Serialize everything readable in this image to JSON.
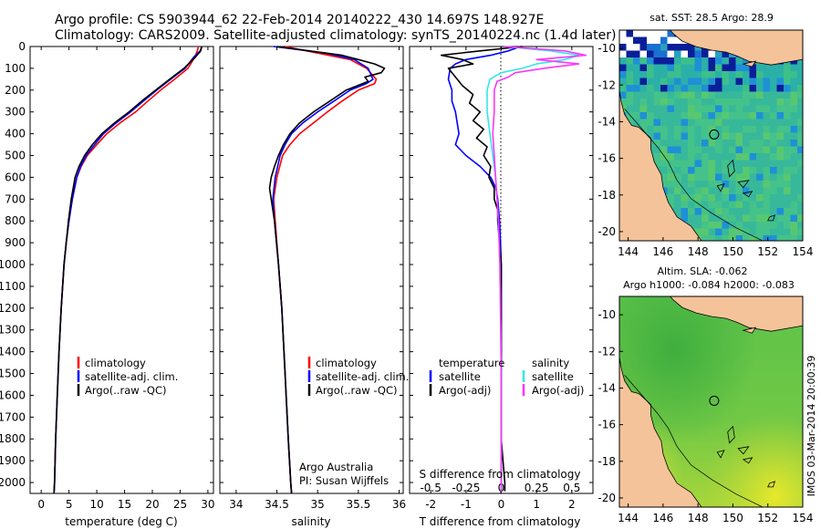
{
  "header": {
    "line1": "Argo profile: CS 5903944_62 22-Feb-2014 20140222_430 14.697S 148.927E",
    "line2": "Climatology: CARS2009. Satellite-adjusted climatology: synTS_20140224.nc (1.4d later)"
  },
  "colors": {
    "climatology": "#ff0000",
    "satellite": "#0000ff",
    "argo": "#000000",
    "sal_satellite": "#33e6e6",
    "sal_argo": "#ff33ff",
    "land": "#f5c39a"
  },
  "chart_data": [
    {
      "type": "line",
      "title": "",
      "xlabel": "temperature (deg C)",
      "ylabel": "",
      "xlim": [
        -2,
        31
      ],
      "ylim": [
        2050,
        0
      ],
      "xticks": [
        "0",
        "5",
        "10",
        "15",
        "20",
        "25",
        "30"
      ],
      "yticks": [
        "0",
        "100",
        "200",
        "300",
        "400",
        "500",
        "600",
        "700",
        "800",
        "900",
        "1000",
        "1100",
        "1200",
        "1300",
        "1400",
        "1500",
        "1600",
        "1700",
        "1800",
        "1900",
        "2000"
      ],
      "legend": [
        "climatology",
        "satellite-adj. clim.",
        "Argo(..raw -QC)"
      ],
      "series": [
        {
          "name": "climatology",
          "depth": [
            0,
            20,
            50,
            100,
            150,
            200,
            250,
            300,
            350,
            400,
            450,
            500,
            550,
            600,
            700,
            800,
            900,
            1000,
            1200,
            1400,
            1600,
            1800,
            2000,
            2050
          ],
          "values": [
            28.3,
            28.1,
            27.6,
            26.4,
            24.0,
            21.5,
            19.2,
            17.0,
            14.2,
            11.8,
            10.0,
            8.3,
            7.2,
            6.4,
            5.6,
            5.0,
            4.5,
            4.1,
            3.6,
            3.2,
            2.9,
            2.6,
            2.4,
            2.3
          ]
        },
        {
          "name": "satellite-adj. clim.",
          "depth": [
            0,
            20,
            50,
            100,
            150,
            200,
            250,
            300,
            350,
            400,
            450,
            500,
            550,
            600,
            700,
            800,
            900,
            1000,
            1200,
            1400,
            1600,
            1800,
            2000,
            2050
          ],
          "values": [
            28.9,
            28.6,
            27.4,
            25.9,
            23.3,
            20.8,
            18.4,
            16.1,
            13.5,
            11.2,
            9.6,
            8.1,
            7.1,
            6.4,
            5.6,
            5.0,
            4.5,
            4.1,
            3.6,
            3.2,
            2.9,
            2.6,
            2.4,
            2.3
          ]
        },
        {
          "name": "Argo(..raw -QC)",
          "depth": [
            0,
            20,
            50,
            100,
            150,
            200,
            250,
            300,
            350,
            400,
            450,
            500,
            550,
            600,
            700,
            800,
            900,
            1000,
            1200,
            1400,
            1600,
            1800,
            2000,
            2050
          ],
          "values": [
            28.9,
            28.7,
            27.7,
            25.7,
            23.1,
            20.6,
            18.1,
            15.8,
            13.2,
            10.9,
            9.2,
            7.8,
            6.8,
            6.1,
            5.4,
            4.9,
            4.5,
            4.1,
            3.6,
            3.2,
            2.9,
            2.6,
            2.4,
            2.3
          ]
        }
      ]
    },
    {
      "type": "line",
      "xlabel": "salinity",
      "xlim": [
        33.8,
        36.05
      ],
      "ylim": [
        2050,
        0
      ],
      "xticks": [
        "34",
        "34.5",
        "35",
        "35.5",
        "36"
      ],
      "legend": [
        "climatology",
        "satellite-adj. clim.",
        "Argo(..raw -QC)"
      ],
      "annotation": [
        "Argo Australia",
        "PI: Susan Wijffels"
      ],
      "series": [
        {
          "name": "climatology",
          "depth": [
            0,
            30,
            60,
            100,
            150,
            170,
            200,
            250,
            300,
            350,
            400,
            450,
            500,
            600,
            700,
            800,
            1000,
            1200,
            1500,
            1800,
            2000,
            2050
          ],
          "values": [
            34.6,
            35.0,
            35.4,
            35.6,
            35.72,
            35.7,
            35.5,
            35.3,
            35.12,
            34.95,
            34.78,
            34.66,
            34.57,
            34.5,
            34.46,
            34.48,
            34.52,
            34.56,
            34.6,
            34.64,
            34.67,
            34.68
          ]
        },
        {
          "name": "satellite-adj. clim.",
          "depth": [
            0,
            30,
            60,
            100,
            150,
            170,
            200,
            250,
            300,
            350,
            400,
            450,
            500,
            600,
            700,
            800,
            1000,
            1200,
            1500,
            1800,
            2000,
            2050
          ],
          "values": [
            34.46,
            35.1,
            35.45,
            35.62,
            35.68,
            35.6,
            35.4,
            35.2,
            35.0,
            34.82,
            34.68,
            34.6,
            34.54,
            34.48,
            34.45,
            34.47,
            34.52,
            34.56,
            34.6,
            34.64,
            34.67,
            34.68
          ]
        },
        {
          "name": "Argo(..raw -QC)",
          "depth": [
            0,
            20,
            40,
            60,
            80,
            100,
            120,
            140,
            160,
            200,
            250,
            300,
            350,
            400,
            450,
            500,
            550,
            600,
            650,
            700,
            750,
            800,
            1000,
            1200,
            1500,
            1800,
            2000,
            2050
          ],
          "values": [
            34.5,
            34.9,
            35.3,
            35.5,
            35.7,
            35.82,
            35.78,
            35.58,
            35.62,
            35.35,
            35.15,
            34.95,
            34.78,
            34.66,
            34.58,
            34.52,
            34.47,
            34.43,
            34.41,
            34.43,
            34.45,
            34.47,
            34.52,
            34.56,
            34.6,
            34.64,
            34.67,
            34.68
          ]
        }
      ]
    },
    {
      "type": "line",
      "xlabel": "T difference from climatology",
      "xlabel_top": "S difference from climatology",
      "xlim": [
        -2.6,
        2.6
      ],
      "ylim": [
        2050,
        0
      ],
      "xticks": [
        "-2",
        "-1",
        "0",
        "1",
        "2"
      ],
      "xticks_sal": [
        "-0.5",
        "-0.25",
        "0",
        "0.25",
        "0.5"
      ],
      "legend_temperature": {
        "title": "temperature",
        "items": [
          "satellite",
          "Argo(-adj)"
        ]
      },
      "legend_salinity": {
        "title": "salinity",
        "items": [
          "satellite",
          "Argo(-adj)"
        ]
      },
      "series": [
        {
          "name": "temperature satellite",
          "depth": [
            0,
            20,
            40,
            60,
            80,
            100,
            150,
            200,
            250,
            300,
            350,
            400,
            450,
            500,
            550,
            600,
            650,
            700,
            800,
            900,
            1000,
            1200,
            1500,
            1800,
            2000,
            2040
          ],
          "values": [
            0.55,
            0.2,
            -0.3,
            -1.0,
            -1.3,
            -1.45,
            -1.5,
            -1.4,
            -1.4,
            -1.3,
            -1.25,
            -1.2,
            -1.3,
            -1.0,
            -0.6,
            -0.3,
            -0.15,
            -0.1,
            -0.05,
            -0.02,
            0,
            0,
            0,
            0,
            0,
            0
          ]
        },
        {
          "name": "temperature Argo(-adj)",
          "depth": [
            0,
            20,
            40,
            60,
            80,
            100,
            140,
            180,
            220,
            260,
            300,
            340,
            380,
            420,
            460,
            500,
            550,
            600,
            650,
            700,
            750,
            800,
            900,
            1000,
            1200,
            1500,
            1800,
            1900,
            2000,
            2040
          ],
          "values": [
            0.6,
            -0.6,
            -1.7,
            -1.1,
            -0.8,
            -1.5,
            -1.3,
            -1.1,
            -0.8,
            -0.9,
            -0.6,
            -0.8,
            -0.5,
            -0.7,
            -0.4,
            -0.5,
            -0.3,
            -0.35,
            -0.2,
            -0.2,
            -0.1,
            -0.1,
            -0.05,
            0,
            0,
            0,
            0,
            0.05,
            0.1,
            0.1
          ]
        },
        {
          "name": "salinity satellite",
          "depth": [
            0,
            20,
            40,
            60,
            80,
            100,
            120,
            150,
            200,
            300,
            400,
            500,
            600,
            700,
            800,
            1000,
            1500,
            2000,
            2040
          ],
          "values": [
            0.02,
            0.35,
            0.55,
            0.45,
            0.25,
            0.15,
            0.0,
            -0.08,
            -0.1,
            -0.1,
            -0.08,
            -0.06,
            -0.04,
            -0.03,
            -0.02,
            -0.01,
            0,
            0,
            0
          ]
        },
        {
          "name": "salinity Argo(-adj)",
          "depth": [
            0,
            20,
            40,
            60,
            80,
            100,
            120,
            140,
            160,
            200,
            300,
            400,
            500,
            600,
            700,
            800,
            1000,
            1500,
            2000,
            2040
          ],
          "values": [
            0.02,
            0.45,
            0.6,
            0.25,
            0.55,
            0.3,
            0.1,
            0.05,
            -0.03,
            -0.05,
            -0.05,
            -0.06,
            -0.05,
            -0.04,
            -0.03,
            -0.02,
            -0.01,
            0,
            0,
            0
          ]
        }
      ]
    },
    {
      "type": "heatmap",
      "title": "sat. SST: 28.5  Argo: 28.9",
      "xlim": [
        143.5,
        154
      ],
      "ylim": [
        -20.5,
        -9
      ],
      "xticks": [
        "144",
        "146",
        "148",
        "150",
        "152",
        "154"
      ],
      "yticks": [
        "-10",
        "-12",
        "-14",
        "-16",
        "-18",
        "-20"
      ],
      "argo_position": {
        "lon": 148.927,
        "lat": -14.697
      }
    },
    {
      "type": "heatmap",
      "title_line1": "Altim. SLA: -0.062",
      "title_line2": "Argo h1000: -0.084 h2000: -0.083",
      "xlim": [
        143.5,
        154
      ],
      "ylim": [
        -20.5,
        -9
      ],
      "xticks": [
        "144",
        "146",
        "148",
        "150",
        "152",
        "154"
      ],
      "yticks": [
        "-10",
        "-12",
        "-14",
        "-16",
        "-18",
        "-20"
      ],
      "argo_position": {
        "lon": 148.927,
        "lat": -14.697
      }
    }
  ],
  "footer": {
    "stamp": "IMOS 03-Mar-2014 20:00:39"
  }
}
